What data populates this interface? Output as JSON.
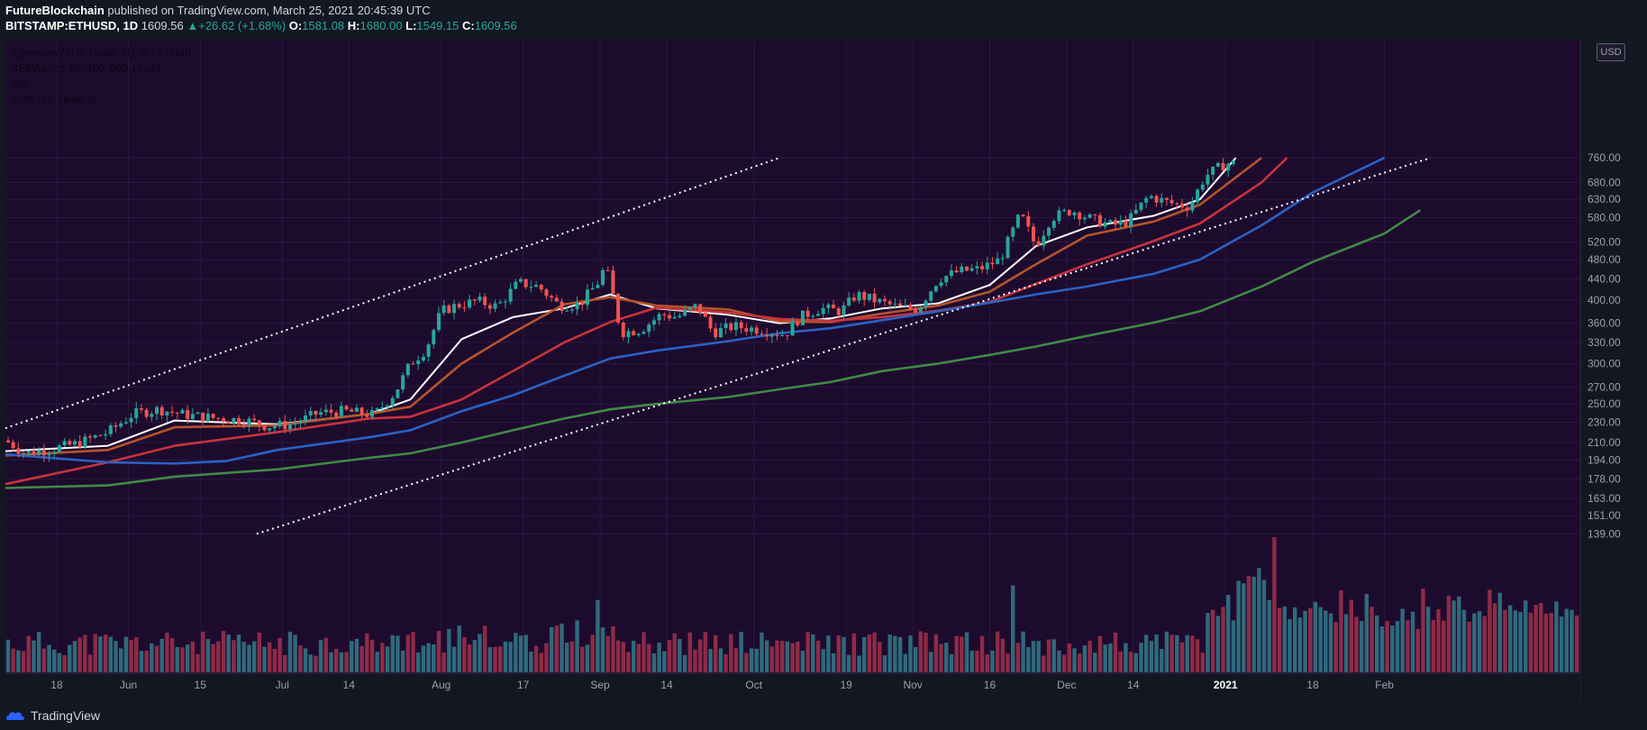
{
  "header": {
    "author": "FutureBlockchain",
    "published_text": "published on TradingView.com, March 25, 2021 20:45:39 UTC",
    "symbol": "BITSTAMP:ETHUSD, 1D",
    "last": "1609.56",
    "change": "+26.62 (+1.68%)",
    "open_label": "O:",
    "open": "1581.08",
    "high_label": "H:",
    "high": "1680.00",
    "low_label": "L:",
    "low": "1549.15",
    "close_label": "C:",
    "close": "1609.56"
  },
  "legend": {
    "title": "Ethereum / U.S. Dollar, 1D, BITSTAMP",
    "emas": "4EMAs (20, 50, 100, 200, close)",
    "vol": "Vol",
    "ema21": "EMA (21, close, 0)"
  },
  "currency_badge": "USD",
  "footer": {
    "brand": "TradingView"
  },
  "colors": {
    "background": "#1d0b2e",
    "up": "#26a69a",
    "down": "#ef5350",
    "ema20": "#ffffff",
    "ema50": "#b7542a",
    "ema100": "#c8333b",
    "ema200": "#2962c4",
    "ema_slow": "#3f8a45",
    "volume_up": "#2e6a7b",
    "volume_down": "#8e2b46",
    "axis_text": "#9aa0ad",
    "channel": "#ffffff"
  },
  "chart_data": {
    "type": "candlestick",
    "y_scale": "log",
    "y_ticks": [
      "139.00",
      "151.00",
      "163.00",
      "178.00",
      "194.00",
      "210.00",
      "230.00",
      "250.00",
      "270.00",
      "300.00",
      "330.00",
      "360.00",
      "400.00",
      "440.00",
      "480.00",
      "520.00",
      "580.00",
      "630.00",
      "680.00",
      "760.00"
    ],
    "y_ticks_values": [
      139,
      151,
      163,
      178,
      194,
      210,
      230,
      250,
      270,
      300,
      330,
      360,
      400,
      440,
      480,
      520,
      580,
      630,
      680,
      760
    ],
    "x_ticks": [
      {
        "label": "18",
        "date": "2020-05-18"
      },
      {
        "label": "Jun",
        "date": "2020-06-01"
      },
      {
        "label": "15",
        "date": "2020-06-15"
      },
      {
        "label": "Jul",
        "date": "2020-07-01"
      },
      {
        "label": "14",
        "date": "2020-07-14"
      },
      {
        "label": "Aug",
        "date": "2020-08-01"
      },
      {
        "label": "17",
        "date": "2020-08-17"
      },
      {
        "label": "Sep",
        "date": "2020-09-01"
      },
      {
        "label": "14",
        "date": "2020-09-14"
      },
      {
        "label": "Oct",
        "date": "2020-10-01"
      },
      {
        "label": "19",
        "date": "2020-10-19"
      },
      {
        "label": "Nov",
        "date": "2020-11-01"
      },
      {
        "label": "16",
        "date": "2020-11-16"
      },
      {
        "label": "Dec",
        "date": "2020-12-01"
      },
      {
        "label": "14",
        "date": "2020-12-14"
      },
      {
        "label": "2021",
        "date": "2021-01-01"
      },
      {
        "label": "18",
        "date": "2021-01-18"
      },
      {
        "label": "Feb",
        "date": "2021-02-01"
      }
    ],
    "close_path": [
      [
        "2020-05-08",
        212
      ],
      [
        "2020-05-12",
        200
      ],
      [
        "2020-05-16",
        203
      ],
      [
        "2020-05-22",
        209
      ],
      [
        "2020-05-28",
        220
      ],
      [
        "2020-06-02",
        239
      ],
      [
        "2020-06-07",
        244
      ],
      [
        "2020-06-12",
        238
      ],
      [
        "2020-06-17",
        235
      ],
      [
        "2020-06-24",
        232
      ],
      [
        "2020-06-28",
        226
      ],
      [
        "2020-07-03",
        228
      ],
      [
        "2020-07-08",
        240
      ],
      [
        "2020-07-13",
        242
      ],
      [
        "2020-07-19",
        238
      ],
      [
        "2020-07-23",
        263
      ],
      [
        "2020-07-26",
        300
      ],
      [
        "2020-07-29",
        320
      ],
      [
        "2020-08-01",
        380
      ],
      [
        "2020-08-04",
        390
      ],
      [
        "2020-08-08",
        398
      ],
      [
        "2020-08-12",
        388
      ],
      [
        "2020-08-16",
        432
      ],
      [
        "2020-08-20",
        425
      ],
      [
        "2020-08-24",
        390
      ],
      [
        "2020-08-28",
        392
      ],
      [
        "2020-09-01",
        438
      ],
      [
        "2020-09-02",
        470
      ],
      [
        "2020-09-04",
        390
      ],
      [
        "2020-09-05",
        345
      ],
      [
        "2020-09-09",
        350
      ],
      [
        "2020-09-13",
        375
      ],
      [
        "2020-09-16",
        370
      ],
      [
        "2020-09-20",
        390
      ],
      [
        "2020-09-23",
        345
      ],
      [
        "2020-09-27",
        355
      ],
      [
        "2020-10-02",
        350
      ],
      [
        "2020-10-07",
        342
      ],
      [
        "2020-10-10",
        370
      ],
      [
        "2020-10-14",
        385
      ],
      [
        "2020-10-18",
        380
      ],
      [
        "2020-10-21",
        410
      ],
      [
        "2020-10-26",
        395
      ],
      [
        "2020-10-30",
        385
      ],
      [
        "2020-11-02",
        385
      ],
      [
        "2020-11-06",
        440
      ],
      [
        "2020-11-10",
        455
      ],
      [
        "2020-11-14",
        460
      ],
      [
        "2020-11-18",
        480
      ],
      [
        "2020-11-22",
        590
      ],
      [
        "2020-11-25",
        510
      ],
      [
        "2020-11-28",
        580
      ],
      [
        "2020-12-02",
        600
      ],
      [
        "2020-12-06",
        575
      ],
      [
        "2020-12-10",
        560
      ],
      [
        "2020-12-13",
        570
      ],
      [
        "2020-12-17",
        640
      ],
      [
        "2020-12-21",
        620
      ],
      [
        "2020-12-25",
        610
      ],
      [
        "2020-12-28",
        700
      ],
      [
        "2021-01-01",
        740
      ]
    ],
    "series": [
      {
        "name": "EMA 20",
        "color": "#ffffff",
        "points": [
          [
            "2020-05-08",
            202
          ],
          [
            "2020-05-28",
            207
          ],
          [
            "2020-06-10",
            232
          ],
          [
            "2020-06-30",
            228
          ],
          [
            "2020-07-18",
            239
          ],
          [
            "2020-07-26",
            255
          ],
          [
            "2020-08-05",
            335
          ],
          [
            "2020-08-15",
            370
          ],
          [
            "2020-08-25",
            385
          ],
          [
            "2020-09-03",
            410
          ],
          [
            "2020-09-12",
            385
          ],
          [
            "2020-09-26",
            374
          ],
          [
            "2020-10-06",
            360
          ],
          [
            "2020-10-16",
            368
          ],
          [
            "2020-10-26",
            385
          ],
          [
            "2020-11-06",
            394
          ],
          [
            "2020-11-16",
            428
          ],
          [
            "2020-11-25",
            510
          ],
          [
            "2020-12-05",
            555
          ],
          [
            "2020-12-18",
            585
          ],
          [
            "2020-12-27",
            630
          ],
          [
            "2021-01-03",
            760
          ]
        ]
      },
      {
        "name": "EMA 21",
        "color": "#b7542a",
        "points": [
          [
            "2020-05-08",
            198
          ],
          [
            "2020-05-28",
            203
          ],
          [
            "2020-06-10",
            225
          ],
          [
            "2020-06-30",
            227
          ],
          [
            "2020-07-18",
            239
          ],
          [
            "2020-07-26",
            247
          ],
          [
            "2020-08-05",
            300
          ],
          [
            "2020-08-15",
            345
          ],
          [
            "2020-08-25",
            392
          ],
          [
            "2020-09-03",
            405
          ],
          [
            "2020-09-12",
            390
          ],
          [
            "2020-09-26",
            383
          ],
          [
            "2020-10-06",
            363
          ],
          [
            "2020-10-16",
            362
          ],
          [
            "2020-10-26",
            376
          ],
          [
            "2020-11-06",
            390
          ],
          [
            "2020-11-16",
            415
          ],
          [
            "2020-11-25",
            470
          ],
          [
            "2020-12-05",
            535
          ],
          [
            "2020-12-18",
            570
          ],
          [
            "2020-12-27",
            615
          ],
          [
            "2021-01-08",
            760
          ]
        ]
      },
      {
        "name": "EMA 50",
        "color": "#c8333b",
        "points": [
          [
            "2020-05-08",
            174
          ],
          [
            "2020-05-28",
            192
          ],
          [
            "2020-06-10",
            207
          ],
          [
            "2020-06-30",
            220
          ],
          [
            "2020-07-18",
            234
          ],
          [
            "2020-07-26",
            236
          ],
          [
            "2020-08-05",
            255
          ],
          [
            "2020-08-15",
            290
          ],
          [
            "2020-08-25",
            330
          ],
          [
            "2020-09-03",
            362
          ],
          [
            "2020-09-12",
            386
          ],
          [
            "2020-09-26",
            378
          ],
          [
            "2020-10-06",
            367
          ],
          [
            "2020-10-16",
            364
          ],
          [
            "2020-10-26",
            370
          ],
          [
            "2020-11-06",
            381
          ],
          [
            "2020-11-16",
            396
          ],
          [
            "2020-11-25",
            430
          ],
          [
            "2020-12-05",
            470
          ],
          [
            "2020-12-18",
            522
          ],
          [
            "2020-12-27",
            565
          ],
          [
            "2021-01-08",
            680
          ],
          [
            "2021-01-13",
            760
          ]
        ]
      },
      {
        "name": "EMA 100",
        "color": "#2962c4",
        "points": [
          [
            "2020-05-08",
            199
          ],
          [
            "2020-05-28",
            192
          ],
          [
            "2020-06-10",
            191
          ],
          [
            "2020-06-20",
            193
          ],
          [
            "2020-06-30",
            203
          ],
          [
            "2020-07-18",
            215
          ],
          [
            "2020-07-26",
            222
          ],
          [
            "2020-08-05",
            242
          ],
          [
            "2020-08-15",
            260
          ],
          [
            "2020-08-25",
            284
          ],
          [
            "2020-09-03",
            307
          ],
          [
            "2020-09-12",
            318
          ],
          [
            "2020-09-26",
            332
          ],
          [
            "2020-10-06",
            344
          ],
          [
            "2020-10-16",
            352
          ],
          [
            "2020-10-26",
            365
          ],
          [
            "2020-11-06",
            380
          ],
          [
            "2020-11-16",
            395
          ],
          [
            "2020-11-25",
            410
          ],
          [
            "2020-12-05",
            425
          ],
          [
            "2020-12-18",
            450
          ],
          [
            "2020-12-27",
            480
          ],
          [
            "2021-01-08",
            560
          ],
          [
            "2021-01-18",
            650
          ],
          [
            "2021-02-01",
            760
          ]
        ]
      },
      {
        "name": "EMA 200",
        "color": "#3f8a45",
        "points": [
          [
            "2020-05-08",
            171
          ],
          [
            "2020-05-28",
            173
          ],
          [
            "2020-06-10",
            180
          ],
          [
            "2020-06-30",
            186
          ],
          [
            "2020-07-18",
            196
          ],
          [
            "2020-07-26",
            200
          ],
          [
            "2020-08-05",
            210
          ],
          [
            "2020-08-15",
            222
          ],
          [
            "2020-08-25",
            234
          ],
          [
            "2020-09-03",
            244
          ],
          [
            "2020-09-12",
            250
          ],
          [
            "2020-09-26",
            258
          ],
          [
            "2020-10-06",
            267
          ],
          [
            "2020-10-16",
            276
          ],
          [
            "2020-10-26",
            290
          ],
          [
            "2020-11-06",
            300
          ],
          [
            "2020-11-16",
            312
          ],
          [
            "2020-11-25",
            324
          ],
          [
            "2020-12-05",
            340
          ],
          [
            "2020-12-18",
            361
          ],
          [
            "2020-12-27",
            380
          ],
          [
            "2021-01-08",
            425
          ],
          [
            "2021-01-18",
            475
          ],
          [
            "2021-02-01",
            540
          ],
          [
            "2021-02-08",
            600
          ]
        ]
      }
    ],
    "channel_lines": [
      {
        "from": [
          "2020-05-08",
          224
        ],
        "to": [
          "2020-10-06",
          760
        ]
      },
      {
        "from": [
          "2020-06-26",
          139
        ],
        "to": [
          "2021-02-10",
          760
        ]
      }
    ],
    "volume_max_date": "2021-01-11",
    "volume_peak_dates": [
      [
        "2020-09-01",
        "up"
      ],
      [
        "2020-11-21",
        "up"
      ],
      [
        "2021-01-04",
        "up"
      ],
      [
        "2021-01-11",
        "down"
      ],
      [
        "2021-01-24",
        "down"
      ]
    ]
  }
}
